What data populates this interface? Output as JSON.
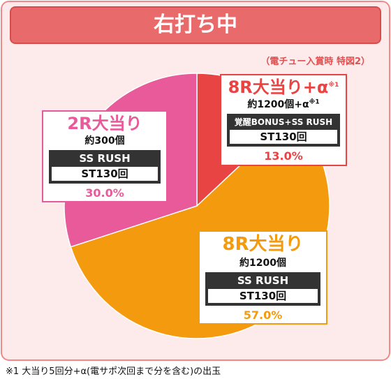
{
  "title": "右打ち中",
  "note": "（電チュー入賞時 特図2）",
  "footnote": "※1 大当り5回分+α(電サポ次回まで分を含む)の出玉",
  "colors": {
    "red": "#e94444",
    "orange": "#f39a0f",
    "pink": "#e85a9a"
  },
  "chart_data": {
    "type": "pie",
    "slices": [
      {
        "label": "8R大当り+α",
        "payout": "約1200個+α",
        "mode": "覚醒BONUS+SS RUSH",
        "st": "ST130回",
        "value": 13.0,
        "percent": "13.0%"
      },
      {
        "label": "8R大当り",
        "payout": "約1200個",
        "mode": "SS RUSH",
        "st": "ST130回",
        "value": 57.0,
        "percent": "57.0%"
      },
      {
        "label": "2R大当り",
        "payout": "約300個",
        "mode": "SS RUSH",
        "st": "ST130回",
        "value": 30.0,
        "percent": "30.0%"
      }
    ],
    "footnote_mark": "※1"
  }
}
